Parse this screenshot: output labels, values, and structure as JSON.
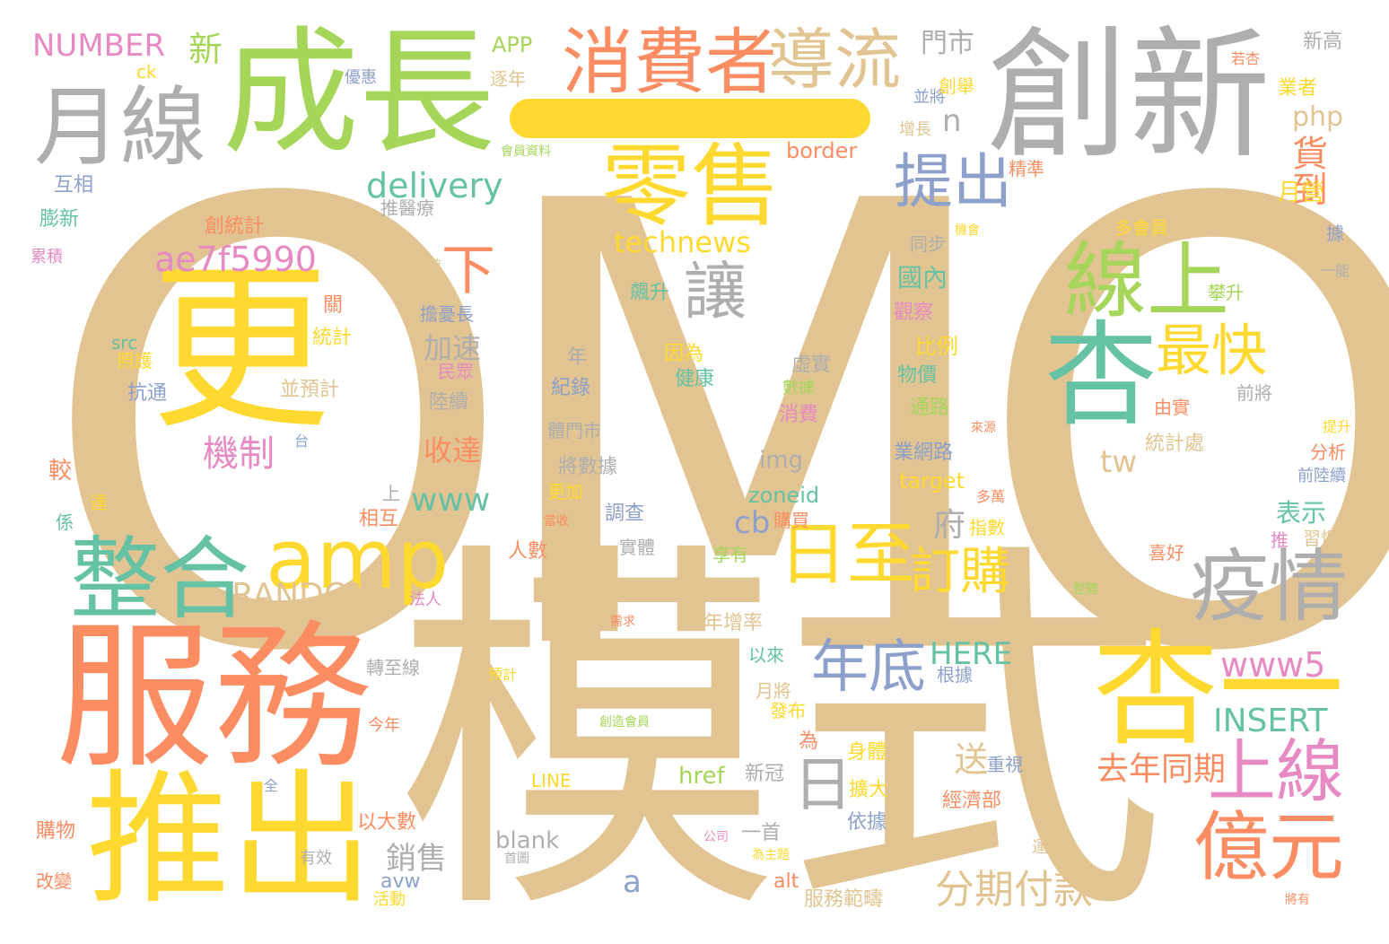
{
  "palette": {
    "tan": "#e1c491",
    "gray": "#aeaeae",
    "green": "#a5d65a",
    "yellow": "#ffd92f",
    "orange": "#fc8d62",
    "teal": "#66c2a5",
    "blue": "#8da0cb",
    "pink": "#e78ac3"
  },
  "words": [
    "OMO",
    "模式",
    "服務",
    "成長",
    "創新",
    "更",
    "推出",
    "杏一",
    "零售",
    "消費者",
    "月線",
    "整合",
    "amp",
    "導流",
    "線上",
    "杏",
    "疫情",
    "億元",
    "上線",
    "日至",
    "最快",
    "提出",
    "讓",
    "年底",
    "訂購",
    "日",
    "分期付款",
    "去年同期",
    "下",
    "貨到",
    "technews",
    "delivery",
    "ae7f5990",
    "www5",
    "INSERT",
    "HERE",
    "RANDOM",
    "NUMBER",
    "機制",
    "送",
    "府",
    "收達",
    "加速",
    "銷售",
    "新",
    "門市",
    "php",
    "tw",
    "www",
    "cb",
    "a",
    "n",
    "img",
    "zoneid",
    "href",
    "blank",
    "LINE",
    "alt",
    "avw",
    "src",
    "target",
    "border",
    "APP",
    "ck",
    "國內",
    "比例",
    "物價",
    "通路",
    "業網路",
    "觀察",
    "同步",
    "表示",
    "分析",
    "前陸續",
    "月營",
    "業者",
    "新高",
    "若杏",
    "統計處",
    "由實",
    "前將",
    "攀升",
    "據",
    "一能",
    "提升",
    "習慣",
    "推",
    "喜好",
    "擔憂長",
    "民眾",
    "陸續",
    "紀錄",
    "年",
    "健康",
    "因為",
    "虛實",
    "數據",
    "消費",
    "飆升",
    "推醫療",
    "精準",
    "增長",
    "並將",
    "創舉",
    "逐年",
    "優惠",
    "會員資料",
    "多會員",
    "機會",
    "互相",
    "膨新",
    "累積",
    "創統計",
    "前",
    "關",
    "統計",
    "照護",
    "抗通",
    "並預計",
    "台",
    "較",
    "達",
    "係",
    "上",
    "相互",
    "考量",
    "將數據",
    "體門市",
    "更加",
    "當收",
    "調查",
    "實體",
    "購買",
    "指數",
    "多萬",
    "人數",
    "享有",
    "法人",
    "年增率",
    "以來",
    "轉至線",
    "月將",
    "發布",
    "為",
    "身體",
    "擴大",
    "依據",
    "重視",
    "新冠",
    "經濟部",
    "根據",
    "一首",
    "購物",
    "以大數",
    "改變",
    "活動",
    "有效",
    "公司",
    "首圖",
    "為主題",
    "服務範疇",
    "運用",
    "將有",
    "預計",
    "今年",
    "全",
    "需求",
    "創造會員",
    "整體",
    "來源"
  ]
}
